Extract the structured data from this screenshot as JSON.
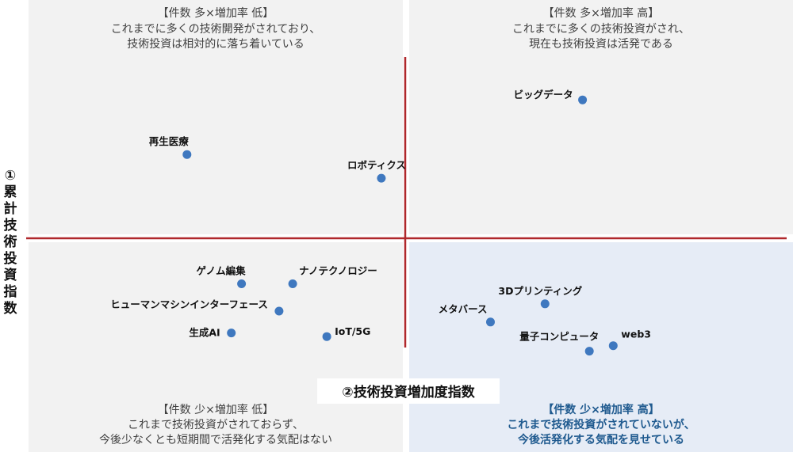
{
  "chart_data": {
    "type": "scatter",
    "xlabel": "②技術投資増加度指数",
    "ylabel": "①累計技術投資指数",
    "quadrants": {
      "top_left": {
        "title": "【件数 多×増加率 低】",
        "lines": [
          "これまでに多くの技術開発がされており、",
          "技術投資は相対的に落ち着いている"
        ]
      },
      "top_right": {
        "title": "【件数 多×増加率 高】",
        "lines": [
          "これまでに多くの技術投資がされ、",
          "現在も技術投資は活発である"
        ]
      },
      "bottom_left": {
        "title": "【件数 少×増加率 低】",
        "lines": [
          "これまで技術投資がされておらず、",
          "今後少なくとも短期間で活発化する気配はない"
        ]
      },
      "bottom_right": {
        "title": "【件数 少×増加率 高】",
        "lines": [
          "これまで技術投資がされていないが、",
          "今後活発化する気配を見せている"
        ]
      }
    },
    "points": [
      {
        "label": "ビッグデータ",
        "x": 0.52,
        "y": 0.76
      },
      {
        "label": "再生医療",
        "x": -0.64,
        "y": 0.46
      },
      {
        "label": "ロボティクス",
        "x": -0.07,
        "y": 0.33
      },
      {
        "label": "ゲノム編集",
        "x": -0.48,
        "y": -0.25
      },
      {
        "label": "ナノテクノロジー",
        "x": -0.33,
        "y": -0.25
      },
      {
        "label": "ヒューマンマシンインターフェース",
        "x": -0.37,
        "y": -0.4
      },
      {
        "label": "生成AI",
        "x": -0.51,
        "y": -0.52
      },
      {
        "label": "IoT/5G",
        "x": -0.23,
        "y": -0.54
      },
      {
        "label": "3Dプリンティング",
        "x": 0.41,
        "y": -0.36
      },
      {
        "label": "メタバース",
        "x": 0.25,
        "y": -0.46
      },
      {
        "label": "量子コンピュータ",
        "x": 0.54,
        "y": -0.62
      },
      {
        "label": "web3",
        "x": 0.61,
        "y": -0.59
      }
    ],
    "colors": {
      "point": "#3f78bf",
      "axis": "#b0282c",
      "quadrant_bg": "#f2f2f2",
      "highlight_bg": "#e6ecf6",
      "highlight_text": "#1f5a8f",
      "text": "#404040"
    }
  }
}
